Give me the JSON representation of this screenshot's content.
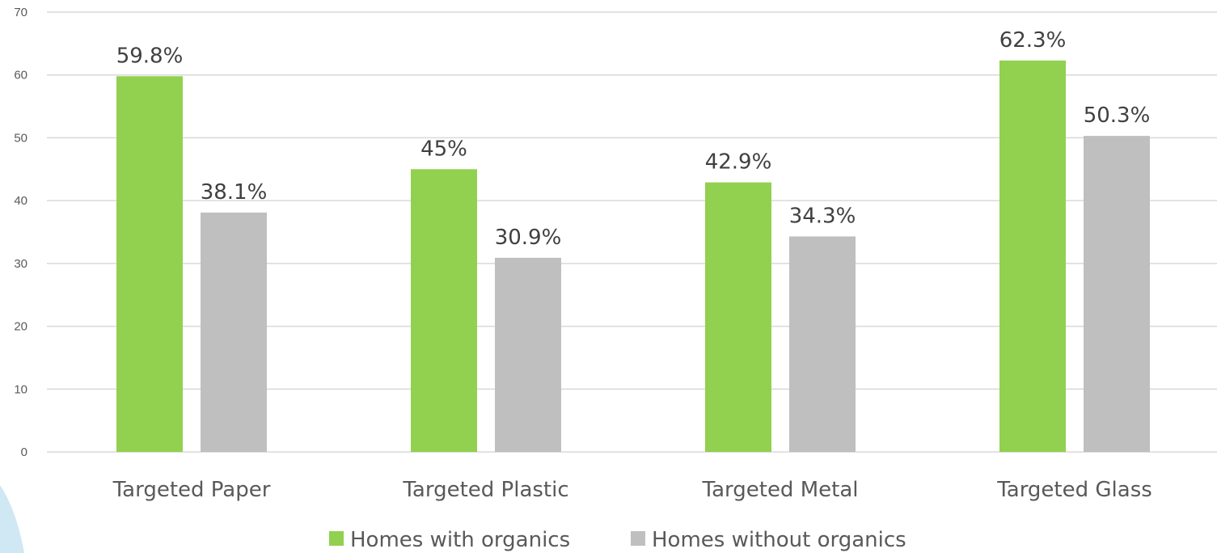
{
  "chart_data": {
    "type": "bar",
    "title": "",
    "xlabel": "",
    "ylabel": "",
    "categories": [
      "Targeted Paper",
      "Targeted Plastic",
      "Targeted Metal",
      "Targeted Glass"
    ],
    "series": [
      {
        "name": "Homes with organics",
        "color": "#92d050",
        "values": [
          59.8,
          45,
          42.9,
          62.3
        ],
        "labels": [
          "59.8%",
          "45%",
          "42.9%",
          "62.3%"
        ]
      },
      {
        "name": "Homes without organics",
        "color": "#bfbfbf",
        "values": [
          38.1,
          30.9,
          34.3,
          50.3
        ],
        "labels": [
          "38.1%",
          "30.9%",
          "34.3%",
          "50.3%"
        ]
      }
    ],
    "ylim": [
      0,
      70
    ],
    "yticks": [
      0,
      10,
      20,
      30,
      40,
      50,
      60,
      70
    ],
    "grid": true,
    "legend": "bottom-center"
  }
}
